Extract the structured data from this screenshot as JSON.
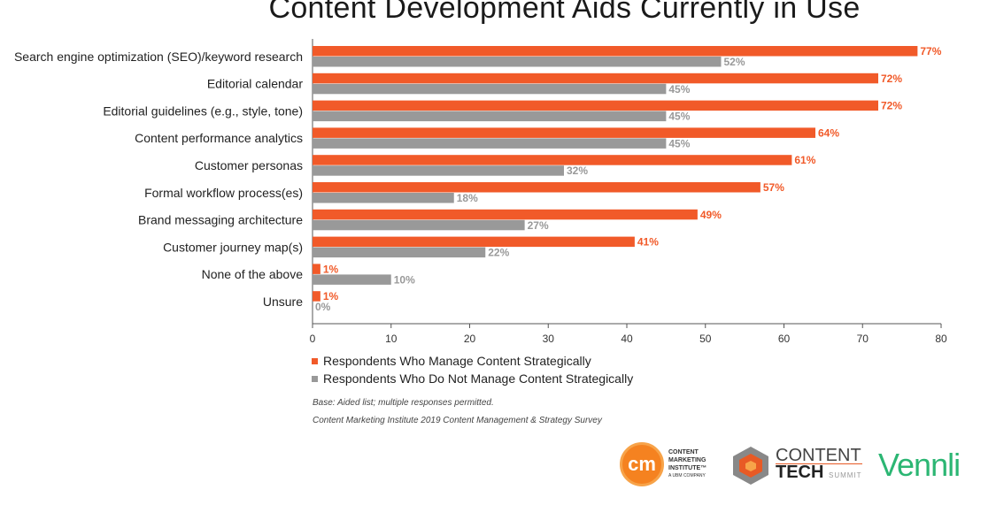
{
  "chart_data": {
    "type": "bar",
    "orientation": "horizontal",
    "title": "Content Development Aids Currently in Use",
    "categories": [
      "Search engine optimization (SEO)/keyword research",
      "Editorial calendar",
      "Editorial guidelines (e.g., style, tone)",
      "Content performance analytics",
      "Customer personas",
      "Formal workflow process(es)",
      "Brand messaging architecture",
      "Customer journey map(s)",
      "None of the above",
      "Unsure"
    ],
    "series": [
      {
        "name": "Respondents Who Manage Content Strategically",
        "color": "#f15a29",
        "values": [
          77,
          72,
          72,
          64,
          61,
          57,
          49,
          41,
          1,
          1
        ],
        "labels": [
          "77%",
          "72%",
          "72%",
          "64%",
          "61%",
          "57%",
          "49%",
          "41%",
          "1%",
          "1%"
        ]
      },
      {
        "name": "Respondents Who Do Not Manage Content Strategically",
        "color": "#999999",
        "values": [
          52,
          45,
          45,
          45,
          32,
          18,
          27,
          22,
          10,
          0
        ],
        "labels": [
          "52%",
          "45%",
          "45%",
          "45%",
          "32%",
          "18%",
          "27%",
          "22%",
          "10%",
          "0%"
        ]
      }
    ],
    "xlim": [
      0,
      80
    ],
    "xticks": [
      "0",
      "10",
      "20",
      "30",
      "40",
      "50",
      "60",
      "70",
      "80"
    ],
    "legend_position": "bottom-left"
  },
  "notes": {
    "base": "Base: Aided list; multiple responses permitted.",
    "source": "Content Marketing Institute 2019 Content Management & Strategy Survey"
  },
  "logos": {
    "cmi": {
      "mark": "cm",
      "line1": "CONTENT",
      "line2": "MARKETING",
      "line3": "INSTITUTE™",
      "sub": "A UBM COMPANY"
    },
    "content_tech": {
      "line1": "CONTENT",
      "line2": "TECH",
      "line2_suffix": "SUMMIT"
    },
    "vennli": "Vennli"
  }
}
